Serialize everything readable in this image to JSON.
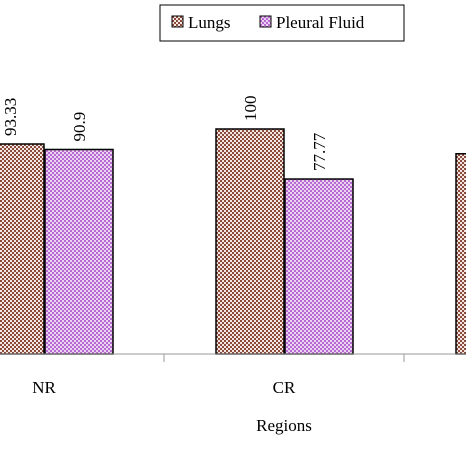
{
  "chart_data": {
    "type": "bar",
    "x_label": "Regions",
    "categories": [
      "NR",
      "CR",
      null
    ],
    "series": [
      {
        "name": "Lungs",
        "color": "#8a4a3c",
        "values": [
          93.33,
          100,
          89
        ]
      },
      {
        "name": "Pleural Fluid",
        "color": "#b86ad0",
        "values": [
          90.9,
          77.77,
          null
        ]
      }
    ],
    "ylim": [
      0,
      100
    ]
  }
}
